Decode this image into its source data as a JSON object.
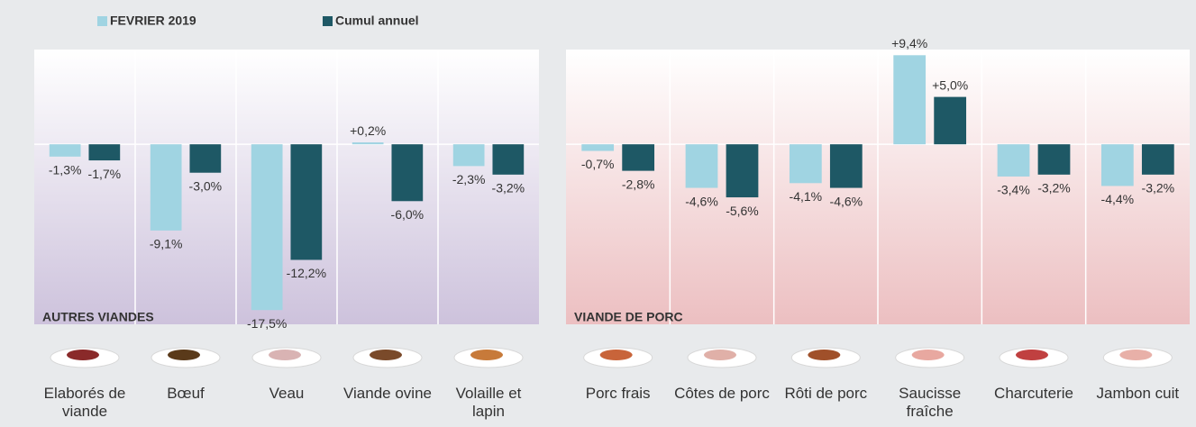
{
  "chart_data": [
    {
      "type": "bar",
      "title": "AUTRES VIANDES",
      "categories": [
        "Elaborés de viande",
        "Bœuf",
        "Veau",
        "Viande ovine",
        "Volaille et lapin"
      ],
      "series": [
        {
          "name": "FEVRIER 2019",
          "color": "#a0d4e2",
          "values": [
            -1.3,
            -9.1,
            -17.5,
            0.2,
            -2.3
          ],
          "value_labels": [
            "-1,3%",
            "-9,1%",
            "-17,5%",
            "+0,2%",
            "-2,3%"
          ]
        },
        {
          "name": "Cumul annuel",
          "color": "#1e5865",
          "values": [
            -1.7,
            -3.0,
            -12.2,
            -6.0,
            -3.2
          ],
          "value_labels": [
            "-1,7%",
            "-3,0%",
            "-12,2%",
            "-6,0%",
            "-3,2%"
          ]
        }
      ],
      "ylim": [
        -19,
        10
      ],
      "background": "#cdc2dc"
    },
    {
      "type": "bar",
      "title": "VIANDE DE PORC",
      "categories": [
        "Porc frais",
        "Côtes de porc",
        "Rôti de porc",
        "Saucisse fraîche",
        "Charcuterie",
        "Jambon cuit"
      ],
      "series": [
        {
          "color": "#a0d4e2",
          "values": [
            -0.7,
            -4.6,
            -4.1,
            9.4,
            -3.4,
            -4.4
          ],
          "value_labels": [
            "-0,7%",
            "-4,6%",
            "-4,1%",
            "+9,4%",
            "-3,4%",
            "-4,4%"
          ]
        },
        {
          "color": "#1e5865",
          "values": [
            -2.8,
            -5.6,
            -4.6,
            5.0,
            -3.2,
            -3.2
          ],
          "value_labels": [
            "-2,8%",
            "-5,6%",
            "-4,6%",
            "+5,0%",
            "-3,2%",
            "-3,2%"
          ]
        }
      ],
      "ylim": [
        -19,
        10
      ],
      "background": "#ecbfc1"
    }
  ]
}
